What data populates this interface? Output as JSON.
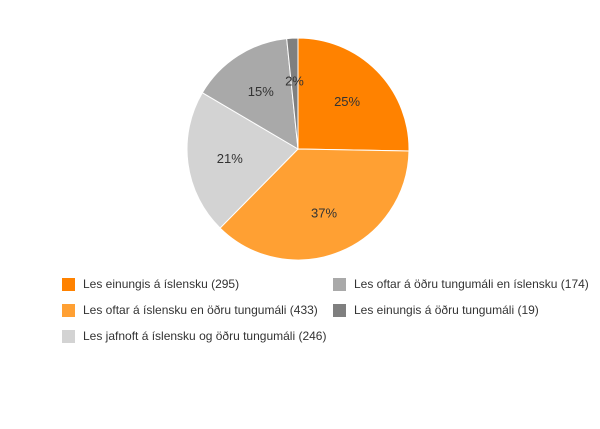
{
  "chart_data": {
    "type": "pie",
    "categories": [
      "Les einungis á íslensku",
      "Les oftar á íslensku en öðru tungumáli",
      "Les jafnoft á íslensku og öðru tungumáli",
      "Les oftar á öðru tungumáli en íslensku",
      "Les einungis á öðru tungumáli"
    ],
    "values": [
      295,
      433,
      246,
      174,
      19
    ],
    "percent_labels": [
      "25%",
      "37%",
      "21%",
      "15%",
      "2%"
    ],
    "legend_labels": [
      "Les einungis á íslensku (295)",
      "Les oftar á íslensku en öðru tungumáli (433)",
      "Les jafnoft á íslensku og öðru tungumáli (246)",
      "Les oftar á öðru tungumáli en íslensku (174)",
      "Les einungis á öðru tungumáli (19)"
    ],
    "colors": [
      "#ff8200",
      "#ffa033",
      "#d3d3d3",
      "#a9a9a9",
      "#7f7f7f"
    ],
    "legend_position": "bottom",
    "start_angle_deg": 0,
    "direction": "clockwise"
  }
}
